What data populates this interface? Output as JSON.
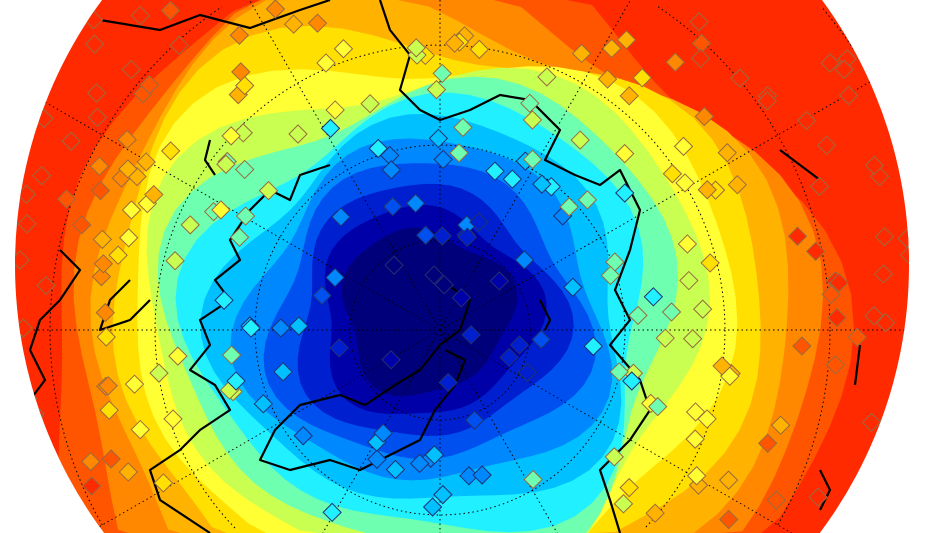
{
  "map": {
    "projection": "polar-stereographic",
    "hemisphere": "north",
    "background_color": "#ffffff",
    "contour_colors": [
      "#ff2a00",
      "#ff5500",
      "#ff8800",
      "#ffb300",
      "#ffe000",
      "#ffff33",
      "#c8ff50",
      "#6effb0",
      "#20f0ff",
      "#00c0ff",
      "#0088ff",
      "#0050f0",
      "#0020d0",
      "#0000a8",
      "#00007a"
    ],
    "coastline_color": "#000000",
    "grid": "dotted",
    "station_markers": "diamond"
  }
}
